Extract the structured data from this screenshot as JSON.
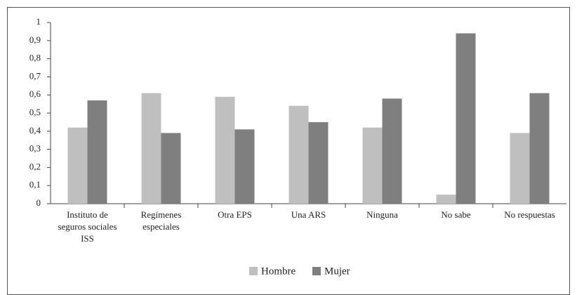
{
  "chart_data": {
    "type": "bar",
    "categories": [
      "Instituto de seguros sociales ISS",
      "Regímenes especiales",
      "Otra EPS",
      "Una ARS",
      "Ninguna",
      "No sabe",
      "No respuestas"
    ],
    "series": [
      {
        "name": "Hombre",
        "color": "#bfbfbf",
        "values": [
          0.42,
          0.61,
          0.59,
          0.54,
          0.42,
          0.05,
          0.39
        ]
      },
      {
        "name": "Mujer",
        "color": "#7f7f7f",
        "values": [
          0.57,
          0.39,
          0.41,
          0.45,
          0.58,
          0.94,
          0.61
        ]
      }
    ],
    "ylim": [
      0,
      1
    ],
    "yticks": [
      0,
      {
        "value": 0.1,
        "label": "0,1"
      },
      {
        "value": 0.2,
        "label": "0,2"
      },
      {
        "value": 0.3,
        "label": "0,3"
      },
      {
        "value": 0.4,
        "label": "0,4"
      },
      {
        "value": 0.5,
        "label": "0,5"
      },
      {
        "value": 0.6,
        "label": "0,6"
      },
      {
        "value": 0.7,
        "label": "0,7"
      },
      {
        "value": 0.8,
        "label": "0,8"
      },
      {
        "value": 0.9,
        "label": "0,9"
      },
      1
    ],
    "grid": false,
    "legend": "bottom"
  }
}
